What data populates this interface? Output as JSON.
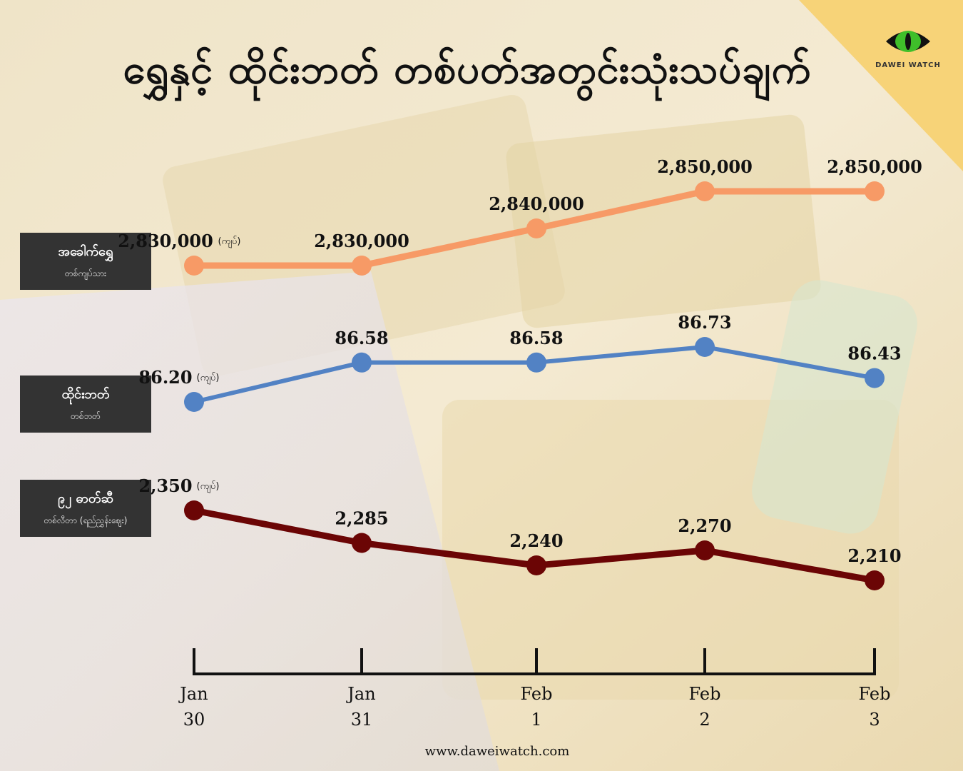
{
  "title": "ရွှေနှင့် ထိုင်းဘတ် တစ်ပတ်အတွင်းသုံးသပ်ချက်",
  "logo_text": "DAWEI WATCH",
  "footer": "www.daweiwatch.com",
  "unit_label": "(ကျပ်)",
  "colors": {
    "gold": "#f79a66",
    "baht": "#5282c4",
    "fuel": "#6b0505",
    "label_bg": "#333333",
    "corner": "#f7d378"
  },
  "chart_data": {
    "type": "line",
    "x": [
      "Jan 30",
      "Jan 31",
      "Feb 1",
      "Feb 2",
      "Feb 3"
    ],
    "x_labels": [
      {
        "month": "Jan",
        "day": "30"
      },
      {
        "month": "Jan",
        "day": "31"
      },
      {
        "month": "Feb",
        "day": "1"
      },
      {
        "month": "Feb",
        "day": "2"
      },
      {
        "month": "Feb",
        "day": "3"
      }
    ],
    "series": [
      {
        "name": "အခေါက်ရွှေ",
        "sub": "တစ်ကျပ်သား",
        "values": [
          2830000,
          2830000,
          2840000,
          2850000,
          2850000
        ],
        "labels": [
          "2,830,000",
          "2,830,000",
          "2,840,000",
          "2,850,000",
          "2,850,000"
        ],
        "color": "#f79a66"
      },
      {
        "name": "ထိုင်းဘတ်",
        "sub": "တစ်ဘတ်",
        "values": [
          86.2,
          86.58,
          86.58,
          86.73,
          86.43
        ],
        "labels": [
          "86.20",
          "86.58",
          "86.58",
          "86.73",
          "86.43"
        ],
        "color": "#5282c4"
      },
      {
        "name": "၉၂ ဓာတ်ဆီ",
        "sub": "တစ်လီတာ (ရည်ညွှန်းဈေး)",
        "values": [
          2350,
          2285,
          2240,
          2270,
          2210
        ],
        "labels": [
          "2,350",
          "2,285",
          "2,240",
          "2,270",
          "2,210"
        ],
        "color": "#6b0505"
      }
    ]
  }
}
